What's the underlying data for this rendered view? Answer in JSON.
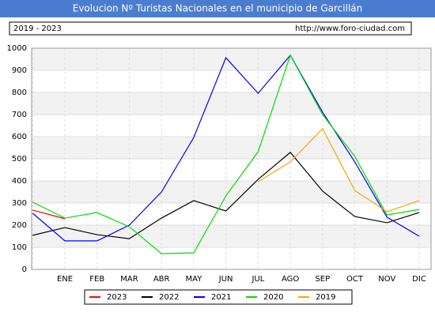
{
  "chart_data": {
    "type": "line",
    "title": "Evolucion Nº Turistas Nacionales en el municipio de Garcillán",
    "subtitle": "2019 - 2023",
    "source": "http://www.foro-ciudad.com",
    "categories": [
      null,
      "ENE",
      "FEB",
      "MAR",
      "ABR",
      "MAY",
      "JUN",
      "JUL",
      "AGO",
      "SEP",
      "OCT",
      "NOV",
      "DIC"
    ],
    "series": [
      {
        "name": "2023",
        "color": "#ff0000",
        "values": [
          268,
          229,
          null,
          null,
          null,
          null,
          null,
          null,
          null,
          null,
          null,
          null,
          null
        ]
      },
      {
        "name": "2022",
        "color": "#000000",
        "values": [
          154,
          189,
          157,
          139,
          232,
          311,
          264,
          407,
          529,
          354,
          239,
          211,
          257
        ]
      },
      {
        "name": "2021",
        "color": "#0000ff",
        "values": [
          254,
          129,
          129,
          200,
          350,
          596,
          957,
          796,
          968,
          711,
          486,
          236,
          150
        ]
      },
      {
        "name": "2020",
        "color": "#00dd00",
        "values": [
          304,
          232,
          257,
          193,
          71,
          75,
          332,
          532,
          968,
          700,
          511,
          246,
          271
        ]
      },
      {
        "name": "2019",
        "color": "#ffa500",
        "values": [
          null,
          null,
          null,
          null,
          null,
          null,
          null,
          396,
          486,
          636,
          357,
          261,
          311
        ]
      }
    ],
    "ylim": [
      0,
      1000
    ],
    "yticks": [
      0,
      100,
      200,
      300,
      400,
      500,
      600,
      700,
      800,
      900,
      1000
    ],
    "grid": true
  }
}
